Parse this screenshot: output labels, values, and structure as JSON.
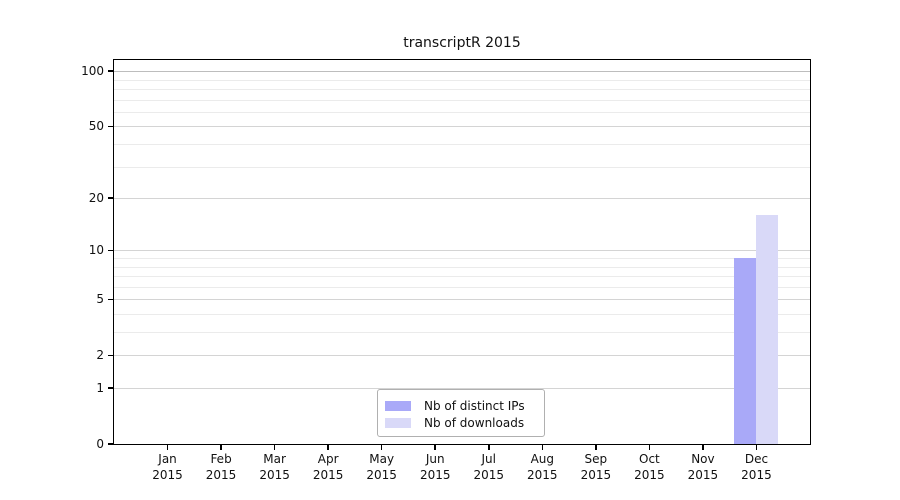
{
  "chart_data": {
    "type": "bar",
    "title": "transcriptR 2015",
    "categories": [
      "Jan 2015",
      "Feb 2015",
      "Mar 2015",
      "Apr 2015",
      "May 2015",
      "Jun 2015",
      "Jul 2015",
      "Aug 2015",
      "Sep 2015",
      "Oct 2015",
      "Nov 2015",
      "Dec 2015"
    ],
    "series": [
      {
        "name": "Nb of distinct IPs",
        "color": "#a9a9f8",
        "values": [
          0,
          0,
          0,
          0,
          0,
          0,
          0,
          0,
          0,
          0,
          0,
          9
        ]
      },
      {
        "name": "Nb of downloads",
        "color": "#d9d9f8",
        "values": [
          0,
          0,
          0,
          0,
          0,
          0,
          0,
          0,
          0,
          0,
          0,
          16
        ]
      }
    ],
    "y_axis": {
      "scale": "log1p",
      "ticks": [
        0,
        1,
        2,
        5,
        10,
        20,
        50,
        100
      ],
      "minor_gridlines": [
        3,
        4,
        6,
        7,
        8,
        9,
        30,
        40,
        60,
        70,
        80,
        90
      ],
      "top_value": 115
    },
    "x_axis": {
      "label_line2": "2015"
    },
    "legend_position": "lower center",
    "grid": true,
    "grid_colors": {
      "major": "#d4d4d4",
      "minor": "#ebebeb",
      "hundred": "#bdbdbd"
    }
  }
}
